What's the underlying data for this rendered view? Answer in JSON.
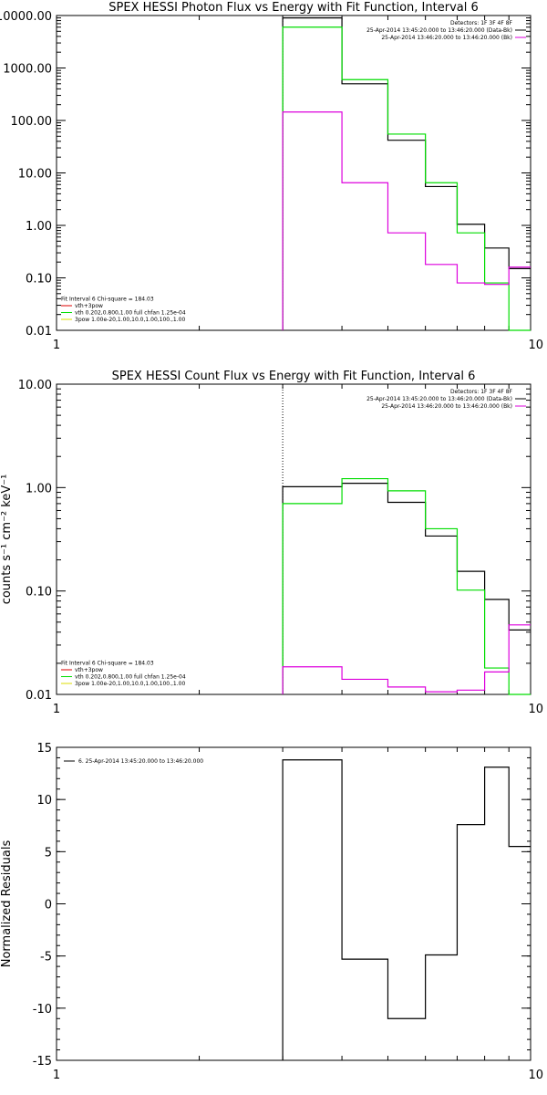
{
  "chart_data": [
    {
      "type": "step",
      "title": "SPEX HESSI Photon Flux vs Energy with Fit Function, Interval 6",
      "xscale": "log",
      "yscale": "log",
      "xlim": [
        1,
        10
      ],
      "ylim": [
        0.01,
        10000
      ],
      "xticks": [
        1,
        10
      ],
      "xtick_labels": [
        "1",
        "10"
      ],
      "yticks": [
        0.01,
        0.1,
        1,
        10,
        100,
        1000,
        10000
      ],
      "ytick_labels": [
        "0.01",
        "0.10",
        "1.00",
        "10.00",
        "100.00",
        "1000.00",
        "10000.00"
      ],
      "vline": 3.0,
      "bin_edges": [
        3.0,
        4.0,
        5.0,
        6.0,
        7.0,
        8.0,
        9.0,
        10.0
      ],
      "series": [
        {
          "name": "data",
          "color": "#000000",
          "values": [
            9000,
            500,
            42,
            5.5,
            1.05,
            0.37,
            0.15
          ]
        },
        {
          "name": "vth+3pow",
          "color": "#00dd00",
          "values": [
            6000,
            600,
            55,
            6.5,
            0.72,
            0.08,
            0.001
          ]
        },
        {
          "name": "bk",
          "color": "#dd00dd",
          "values": [
            145,
            6.5,
            0.72,
            0.18,
            0.08,
            0.075,
            0.16
          ]
        }
      ],
      "legend_top_right": [
        {
          "text": "Detectors: 1F 3F 4F 8F",
          "color": "#000000"
        },
        {
          "text": "25-Apr-2014 13:45:20.000 to 13:46:20.000 (Data-Bk)",
          "color": "#000000"
        },
        {
          "text": "25-Apr-2014 13:46:20.000 to 13:46:20.000 (Bk)",
          "color": "#dd00dd"
        }
      ],
      "legend_bottom_left": [
        {
          "text": "Fit Interval  6    Chi-square = 184.03",
          "color": "#000000"
        },
        {
          "text": "vth+3pow",
          "color": "#dd0000"
        },
        {
          "text": "vth 0.202,0.800,1.00  full chfan 1.25e-04",
          "color": "#00dd00"
        },
        {
          "text": "3pow 1.00e-20,1.00,10.0,1.00,100.,1.00",
          "color": "#dddd00"
        }
      ]
    },
    {
      "type": "step",
      "title": "SPEX HESSI Count Flux vs Energy with Fit Function, Interval 6",
      "xscale": "log",
      "yscale": "log",
      "xlim": [
        1,
        10
      ],
      "ylim": [
        0.01,
        10
      ],
      "xticks": [
        1,
        10
      ],
      "xtick_labels": [
        "1",
        "10"
      ],
      "yticks": [
        0.01,
        0.1,
        1,
        10
      ],
      "ytick_labels": [
        "0.01",
        "0.10",
        "1.00",
        "10.00"
      ],
      "ylabel": "counts s⁻¹ cm⁻² keV⁻¹",
      "vline": 3.0,
      "bin_edges": [
        3.0,
        4.0,
        5.0,
        6.0,
        7.0,
        8.0,
        9.0,
        10.0
      ],
      "series": [
        {
          "name": "data",
          "color": "#000000",
          "values": [
            1.02,
            1.1,
            0.72,
            0.34,
            0.155,
            0.083,
            0.042
          ]
        },
        {
          "name": "vth+3pow",
          "color": "#00dd00",
          "values": [
            0.7,
            1.22,
            0.93,
            0.4,
            0.102,
            0.018,
            0.001
          ]
        },
        {
          "name": "bk",
          "color": "#dd00dd",
          "values": [
            0.0185,
            0.014,
            0.0118,
            0.0106,
            0.011,
            0.0165,
            0.047
          ]
        }
      ],
      "legend_top_right": [
        {
          "text": "Detectors: 1F 3F 4F 8F",
          "color": "#000000"
        },
        {
          "text": "25-Apr-2014 13:45:20.000 to 13:46:20.000 (Data-Bk)",
          "color": "#000000"
        },
        {
          "text": "25-Apr-2014 13:46:20.000 to 13:46:20.000 (Bk)",
          "color": "#dd00dd"
        }
      ],
      "legend_bottom_left": [
        {
          "text": "Fit Interval  6    Chi-square = 184.03",
          "color": "#000000"
        },
        {
          "text": "vth+3pow",
          "color": "#dd0000"
        },
        {
          "text": "vth 0.202,0.800,1.00  full chfan 1.25e-04",
          "color": "#00dd00"
        },
        {
          "text": "3pow 1.00e-20,1.00,10.0,1.00,100.,1.00",
          "color": "#dddd00"
        }
      ]
    },
    {
      "type": "step",
      "title": "",
      "xscale": "log",
      "yscale": "linear",
      "xlim": [
        1,
        10
      ],
      "ylim": [
        -15,
        15
      ],
      "xticks": [
        1,
        10
      ],
      "xtick_labels": [
        "1",
        "10"
      ],
      "yticks": [
        -15,
        -10,
        -5,
        0,
        5,
        10,
        15
      ],
      "ytick_labels": [
        "-15",
        "-10",
        "-5",
        "0",
        "5",
        "10",
        "15"
      ],
      "ylabel": "Normalized Residuals",
      "bin_edges": [
        3.0,
        4.0,
        5.0,
        6.0,
        7.0,
        8.0,
        9.0,
        10.0
      ],
      "series": [
        {
          "name": "residuals",
          "color": "#000000",
          "values": [
            13.8,
            -5.3,
            -11.0,
            -4.9,
            7.6,
            13.1,
            5.5
          ]
        }
      ],
      "legend_top_left": [
        {
          "text": "6. 25-Apr-2014 13:45:20.000 to 13:46:20.000",
          "color": "#000000"
        }
      ]
    }
  ]
}
